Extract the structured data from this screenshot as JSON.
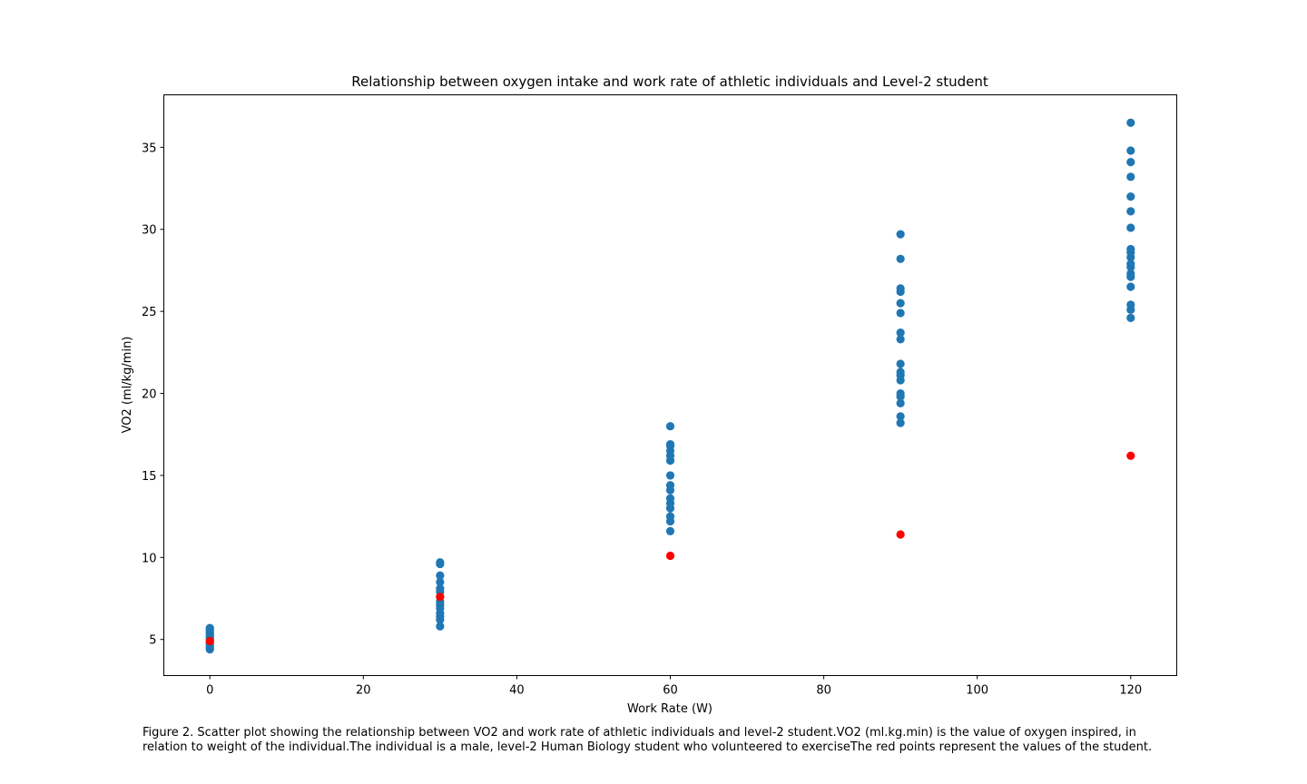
{
  "chart_data": {
    "type": "scatter",
    "title": "Relationship between oxygen intake and work rate of athletic individuals and Level-2 student",
    "xlabel": "Work Rate (W)",
    "ylabel": "VO2 (ml/kg/min)",
    "xlim": [
      -6,
      126
    ],
    "ylim": [
      2.8,
      38.2
    ],
    "xticks": [
      0,
      20,
      40,
      60,
      80,
      100,
      120
    ],
    "yticks": [
      5,
      10,
      15,
      20,
      25,
      30,
      35
    ],
    "grid": false,
    "legend": "none",
    "series": [
      {
        "color": "#1f77b4",
        "points": [
          [
            0,
            4.4
          ],
          [
            0,
            4.5
          ],
          [
            0,
            4.6
          ],
          [
            0,
            4.7
          ],
          [
            0,
            4.8
          ],
          [
            0,
            4.9
          ],
          [
            0,
            5.0
          ],
          [
            0,
            5.1
          ],
          [
            0,
            5.2
          ],
          [
            0,
            5.3
          ],
          [
            0,
            5.4
          ],
          [
            0,
            5.5
          ],
          [
            0,
            5.6
          ],
          [
            0,
            5.7
          ],
          [
            30,
            5.8
          ],
          [
            30,
            6.2
          ],
          [
            30,
            6.4
          ],
          [
            30,
            6.6
          ],
          [
            30,
            6.9
          ],
          [
            30,
            7.1
          ],
          [
            30,
            7.3
          ],
          [
            30,
            7.6
          ],
          [
            30,
            7.9
          ],
          [
            30,
            8.1
          ],
          [
            30,
            8.5
          ],
          [
            30,
            8.9
          ],
          [
            30,
            9.6
          ],
          [
            30,
            9.7
          ],
          [
            60,
            11.6
          ],
          [
            60,
            12.2
          ],
          [
            60,
            12.5
          ],
          [
            60,
            13.0
          ],
          [
            60,
            13.3
          ],
          [
            60,
            13.6
          ],
          [
            60,
            14.1
          ],
          [
            60,
            14.4
          ],
          [
            60,
            15.0
          ],
          [
            60,
            15.9
          ],
          [
            60,
            16.2
          ],
          [
            60,
            16.5
          ],
          [
            60,
            16.8
          ],
          [
            60,
            16.9
          ],
          [
            60,
            18.0
          ],
          [
            90,
            18.2
          ],
          [
            90,
            18.6
          ],
          [
            90,
            19.4
          ],
          [
            90,
            19.8
          ],
          [
            90,
            20.0
          ],
          [
            90,
            20.8
          ],
          [
            90,
            21.1
          ],
          [
            90,
            21.3
          ],
          [
            90,
            21.8
          ],
          [
            90,
            23.3
          ],
          [
            90,
            23.7
          ],
          [
            90,
            24.9
          ],
          [
            90,
            25.5
          ],
          [
            90,
            26.2
          ],
          [
            90,
            26.4
          ],
          [
            90,
            28.2
          ],
          [
            90,
            29.7
          ],
          [
            120,
            24.6
          ],
          [
            120,
            25.1
          ],
          [
            120,
            25.4
          ],
          [
            120,
            26.5
          ],
          [
            120,
            27.1
          ],
          [
            120,
            27.3
          ],
          [
            120,
            27.7
          ],
          [
            120,
            27.9
          ],
          [
            120,
            28.3
          ],
          [
            120,
            28.6
          ],
          [
            120,
            28.8
          ],
          [
            120,
            30.1
          ],
          [
            120,
            31.1
          ],
          [
            120,
            32.0
          ],
          [
            120,
            33.2
          ],
          [
            120,
            34.1
          ],
          [
            120,
            34.8
          ],
          [
            120,
            36.5
          ]
        ]
      },
      {
        "color": "#ff0000",
        "points": [
          [
            0,
            4.9
          ],
          [
            30,
            7.6
          ],
          [
            60,
            10.1
          ],
          [
            90,
            11.4
          ],
          [
            120,
            16.2
          ]
        ]
      }
    ]
  },
  "caption": {
    "line1": "Figure 2. Scatter plot showing the relationship between VO2 and work rate of athletic individuals and level-2 student.VO2 (ml.kg.min) is the value of oxygen inspired, in",
    "line2": "relation to weight of the individual.The individual is a male, level-2 Human Biology student who volunteered to exerciseThe red points represent the values of the student."
  }
}
